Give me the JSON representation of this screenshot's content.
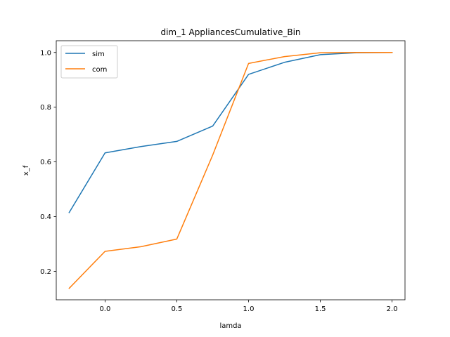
{
  "chart_data": {
    "type": "line",
    "title": "dim_1 AppliancesCumulative_Bin",
    "xlabel": "lamda",
    "ylabel": "x_f",
    "xlim": [
      -0.34,
      2.09
    ],
    "ylim": [
      0.096,
      1.043
    ],
    "xticks": [
      0.0,
      0.5,
      1.0,
      1.5,
      2.0
    ],
    "xtick_labels": [
      "0.0",
      "0.5",
      "1.0",
      "1.5",
      "2.0"
    ],
    "yticks": [
      0.2,
      0.4,
      0.6,
      0.8,
      1.0
    ],
    "ytick_labels": [
      "0.2",
      "0.4",
      "0.6",
      "0.8",
      "1.0"
    ],
    "grid": false,
    "legend": "upper-left",
    "x": [
      -0.25,
      0.0,
      0.25,
      0.5,
      0.75,
      1.0,
      1.25,
      1.5,
      1.75,
      2.0
    ],
    "series": [
      {
        "name": "sim",
        "color": "#1f77b4",
        "values": [
          0.415,
          0.633,
          0.656,
          0.675,
          0.731,
          0.92,
          0.964,
          0.992,
          0.999,
          1.0
        ]
      },
      {
        "name": "com",
        "color": "#ff7f0e",
        "values": [
          0.138,
          0.273,
          0.29,
          0.318,
          0.625,
          0.96,
          0.985,
          0.999,
          1.0,
          1.0
        ]
      }
    ]
  }
}
